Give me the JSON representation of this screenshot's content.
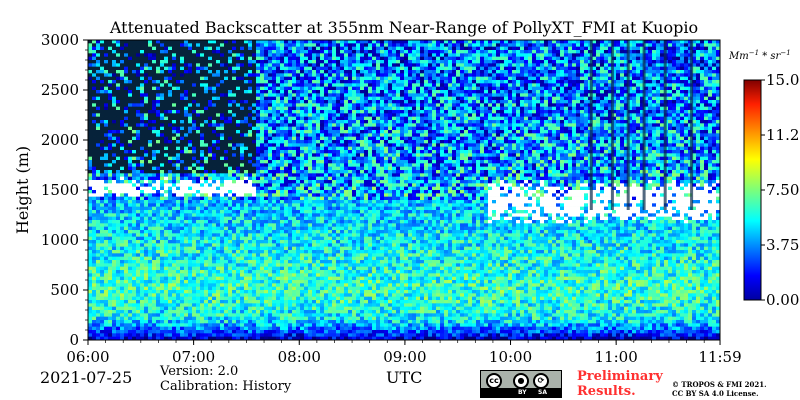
{
  "chart_data": {
    "type": "heatmap",
    "title": "Attenuated Backscatter at 355nm Near-Range of PollyXT_FMI at Kuopio",
    "xlabel": "",
    "ylabel": "Height (m)",
    "x_ticks": [
      "06:00",
      "07:00",
      "08:00",
      "09:00",
      "10:00",
      "11:00",
      "11:59"
    ],
    "x_range_hours": [
      6.0,
      11.983
    ],
    "y_ticks": [
      0,
      500,
      1000,
      1500,
      2000,
      2500,
      3000
    ],
    "ylim": [
      0,
      3000
    ],
    "colorbar": {
      "unit": "Mm^-1*sr^-1",
      "ticks": [
        "0.00",
        "3.75",
        "7.50",
        "11.25",
        "15.00"
      ],
      "range": [
        0,
        15
      ],
      "colormap": "jet"
    },
    "cloud_layers": [
      {
        "start_hour": 6.0,
        "end_hour": 7.6,
        "base_m": 1420,
        "top_m": 1620
      },
      {
        "start_hour": 9.8,
        "end_hour": 11.98,
        "base_m": 1150,
        "top_m": 1600
      }
    ],
    "field_levels": [
      {
        "height_m": 0,
        "value": 0.5
      },
      {
        "height_m": 60,
        "value": 2.5
      },
      {
        "height_m": 200,
        "value": 5.5
      },
      {
        "height_m": 500,
        "value": 6.5
      },
      {
        "height_m": 1000,
        "value": 5.5
      },
      {
        "height_m": 1500,
        "value": 4.5
      },
      {
        "height_m": 2000,
        "value": 4.0
      },
      {
        "height_m": 3000,
        "value": 3.5
      }
    ],
    "grid": false,
    "legend": "colorbar-right"
  },
  "footer": {
    "date": "2021-07-25",
    "version": "Version: 2.0",
    "calibration": "Calibration: History",
    "timezone": "UTC",
    "license_badge": [
      "BY",
      "SA"
    ],
    "preliminary_line1": "Preliminary",
    "preliminary_line2": "Results.",
    "copyright_line1": "© TROPOS & FMI 2021.",
    "copyright_line2": "CC BY SA 4.0 License."
  },
  "colors": {
    "preliminary": "#ff3030",
    "cloud": "#ffffff"
  }
}
